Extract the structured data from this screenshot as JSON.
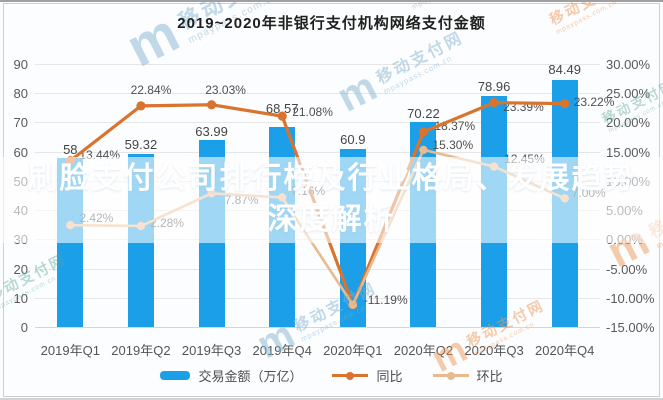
{
  "title": "2019~2020年非银行支付机构网络支付金额",
  "overlay": {
    "line1": "刷脸支付公司排行榜及行业格局、发展趋势",
    "line2": "深度解析"
  },
  "watermark": {
    "logo_letter": "m",
    "name": "移动支付网",
    "domain": "mpaypass.com.cn"
  },
  "legend": [
    {
      "label": "交易金额（万亿）",
      "type": "bar",
      "color": "#1b9fe8"
    },
    {
      "label": "同比",
      "type": "line",
      "color": "#d9742f"
    },
    {
      "label": "环比",
      "type": "line",
      "color": "#e9ba8e"
    }
  ],
  "chart_data": {
    "type": "combo-bar-line",
    "title": "2019~2020年非银行支付机构网络支付金额",
    "categories": [
      "2019年Q1",
      "2019年Q2",
      "2019年Q3",
      "2019年Q4",
      "2020年Q1",
      "2020年Q2",
      "2020年Q3",
      "2020年Q4"
    ],
    "bar_series": {
      "name": "交易金额（万亿）",
      "color": "#1b9fe8",
      "values": [
        58,
        59.32,
        63.99,
        68.57,
        60.9,
        70.22,
        78.96,
        84.49
      ],
      "labels": [
        "58",
        "59.32",
        "63.99",
        "68.57",
        "60.9",
        "70.22",
        "78.96",
        "84.49"
      ]
    },
    "line_series": [
      {
        "name": "同比",
        "color": "#d9742f",
        "values": [
          13.44,
          22.84,
          23.03,
          21.08,
          -11.19,
          18.37,
          23.39,
          23.22
        ],
        "labels": [
          "13.44%",
          "22.84%",
          "23.03%",
          "21.08%",
          "",
          "18.37%",
          "23.39%",
          "23.22%"
        ]
      },
      {
        "name": "环比",
        "color": "#e9ba8e",
        "values": [
          2.42,
          2.28,
          7.87,
          7.16,
          -11.19,
          15.3,
          12.45,
          7.0
        ],
        "labels": [
          "2.42%",
          "2.28%",
          "7.87%",
          "7.16%",
          "-11.19%",
          "15.30%",
          "12.45%",
          "7.00%"
        ]
      }
    ],
    "left_axis": {
      "min": 0,
      "max": 90,
      "step": 10,
      "ticks": [
        "90",
        "80",
        "70",
        "60",
        "50",
        "40",
        "30",
        "20",
        "10",
        "0"
      ]
    },
    "right_axis": {
      "min": -15,
      "max": 30,
      "step": 5,
      "ticks": [
        "30.00%",
        "25.00%",
        "20.00%",
        "15.00%",
        "10.00%",
        "5.00%",
        "0.00%",
        "-5.00%",
        "-10.00%",
        "-15.00%"
      ]
    },
    "grid": true,
    "legend_position": "bottom"
  }
}
